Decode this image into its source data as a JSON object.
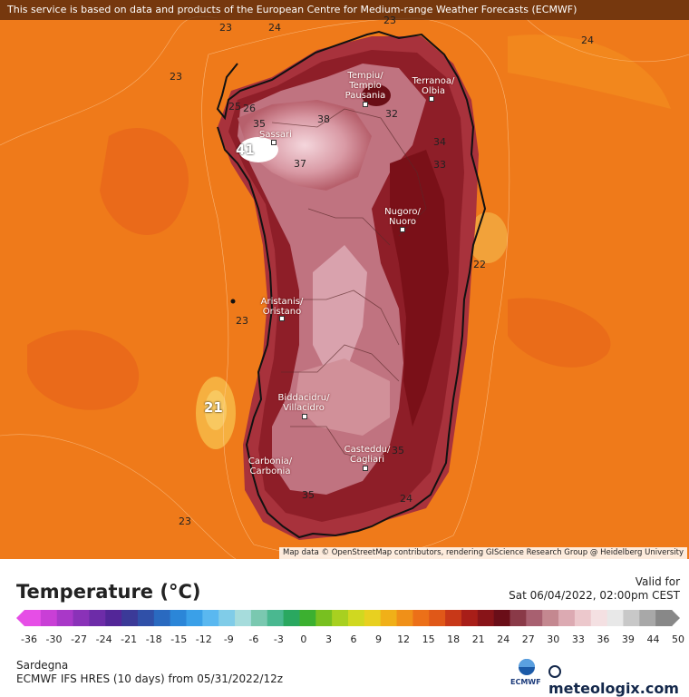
{
  "map": {
    "banner": "This service is based on data and products of the European Centre for Medium-range Weather Forecasts (ECMWF)",
    "attribution": "Map data © OpenStreetMap contributors, rendering GIScience Research Group @ Heidelberg University",
    "cities": [
      {
        "name": "Tempiu/\nTempio\nPausania",
        "id": "tempio"
      },
      {
        "name": "Terranoa/\nOlbia",
        "id": "olbia"
      },
      {
        "name": "Sassari",
        "id": "sassari"
      },
      {
        "name": "Nugoro/\nNuoro",
        "id": "nuoro"
      },
      {
        "name": "Aristanis/\nOristano",
        "id": "oristano"
      },
      {
        "name": "Biddacidru/\nVillacidro",
        "id": "villacidro"
      },
      {
        "name": "Casteddu/\nCagliari",
        "id": "cagliari"
      },
      {
        "name": "Carbonia/\nCarbonia",
        "id": "carbonia"
      }
    ],
    "isolines": [
      "23",
      "24",
      "24",
      "23",
      "23",
      "25",
      "26",
      "35",
      "38",
      "41",
      "37",
      "32",
      "34",
      "33",
      "22",
      "23",
      "21",
      "23",
      "35",
      "24",
      "35",
      "32",
      "23"
    ],
    "colors": {
      "sea": "#f07818",
      "accent": "#8b1a1a"
    }
  },
  "legend": {
    "title": "Temperature (°C)",
    "valid_label": "Valid for",
    "valid_value": "Sat 06/04/2022, 02:00pm CEST",
    "ticks": [
      "-36",
      "-30",
      "-27",
      "-24",
      "-21",
      "-18",
      "-15",
      "-12",
      "-9",
      "-6",
      "-3",
      "0",
      "3",
      "6",
      "9",
      "12",
      "15",
      "18",
      "21",
      "24",
      "27",
      "30",
      "33",
      "36",
      "39",
      "44",
      "50"
    ],
    "region": "Sardegna",
    "model": "ECMWF IFS HRES (10 days) from 05/31/2022/12z",
    "ecmwf_label": "ECMWF",
    "brand": "meteologix.com"
  }
}
